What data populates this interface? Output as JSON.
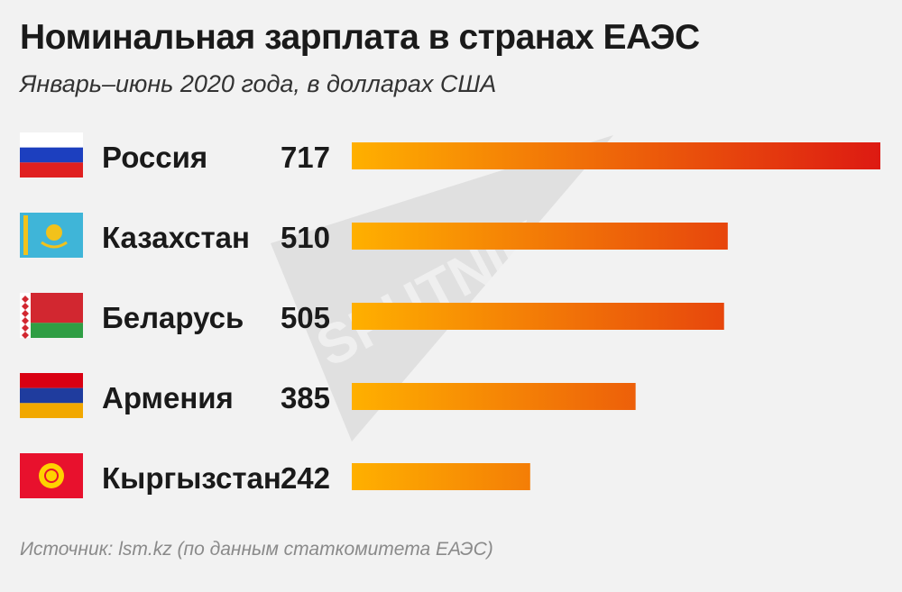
{
  "header": {
    "title": "Номинальная зарплата в странах ЕАЭС",
    "subtitle": "Январь–июнь 2020 года, в долларах США"
  },
  "footer": {
    "source": "Источник: lsm.kz (по данным статкомитета ЕАЭС)"
  },
  "watermark": {
    "text": "SPUTNIK"
  },
  "colors": {
    "bar_start": "#ffb000",
    "bar_end": "#dd1a12",
    "text": "#1a1a1a",
    "background": "#f2f2f2"
  },
  "chart_data": {
    "type": "bar",
    "orientation": "horizontal",
    "categories": [
      "Россия",
      "Казахстан",
      "Беларусь",
      "Армения",
      "Кыргызстан"
    ],
    "values": [
      717,
      510,
      505,
      385,
      242
    ],
    "data_labels": [
      "717",
      "510",
      "505",
      "385",
      "242"
    ],
    "flags": [
      "russia-flag-icon",
      "kazakhstan-flag-icon",
      "belarus-flag-icon",
      "armenia-flag-icon",
      "kyrgyzstan-flag-icon"
    ],
    "title": "Номинальная зарплата в странах ЕАЭС",
    "xlim": [
      0,
      717
    ],
    "grid": false,
    "legend": "none"
  }
}
